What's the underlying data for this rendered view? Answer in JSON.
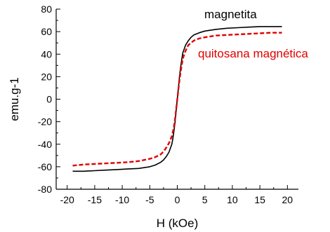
{
  "chart_data": {
    "type": "line",
    "title": "",
    "xlabel": "H (kOe)",
    "ylabel": "emu.g-1",
    "xlim": [
      -22,
      22
    ],
    "ylim": [
      -80,
      80
    ],
    "xticks": [
      -20,
      -15,
      -10,
      -5,
      0,
      5,
      10,
      15,
      20
    ],
    "yticks": [
      -80,
      -60,
      -40,
      -20,
      0,
      20,
      40,
      60,
      80
    ],
    "x_tick_labels": [
      "-20",
      "-15",
      "-10",
      "-5",
      "0",
      "5",
      "10",
      "15",
      "20"
    ],
    "y_tick_labels": [
      "-80",
      "-60",
      "-40",
      "-20",
      "0",
      "20",
      "40",
      "60",
      "80"
    ],
    "grid": false,
    "series": [
      {
        "name": "magnetita",
        "color": "#000000",
        "line_style": "solid",
        "x": [
          -19,
          -17,
          -15,
          -13,
          -11,
          -9,
          -7,
          -5,
          -4,
          -3,
          -2.5,
          -2,
          -1.5,
          -1,
          -0.8,
          -0.6,
          -0.4,
          -0.2,
          0,
          0.2,
          0.4,
          0.6,
          0.8,
          1,
          1.5,
          2,
          2.5,
          3,
          4,
          5,
          7,
          9,
          11,
          13,
          15,
          17,
          19
        ],
        "y": [
          -64,
          -64,
          -63.5,
          -63,
          -62.5,
          -62,
          -61.5,
          -60,
          -58.5,
          -56,
          -54,
          -51,
          -47,
          -40,
          -35,
          -28,
          -20,
          -10,
          0,
          10,
          20,
          28,
          35,
          41,
          48,
          52,
          55,
          57,
          59,
          60.5,
          62,
          63,
          63.5,
          64,
          64.5,
          64.5,
          64.5
        ]
      },
      {
        "name": "quitosana magnética",
        "color": "#e00000",
        "line_style": "dashed",
        "x": [
          -19,
          -17,
          -15,
          -13,
          -11,
          -9,
          -7,
          -5,
          -4,
          -3,
          -2.5,
          -2,
          -1.5,
          -1,
          -0.8,
          -0.6,
          -0.4,
          -0.2,
          0,
          0.2,
          0.4,
          0.6,
          0.8,
          1,
          1.5,
          2,
          2.5,
          3,
          4,
          5,
          7,
          9,
          11,
          13,
          15,
          17,
          19
        ],
        "y": [
          -59,
          -58,
          -57.5,
          -57,
          -56.5,
          -56,
          -55,
          -53,
          -51.5,
          -49,
          -46.5,
          -43,
          -39,
          -33,
          -29,
          -24,
          -17,
          -9,
          0,
          9,
          17,
          24,
          30,
          36,
          43,
          48,
          50,
          52,
          54,
          55,
          56.5,
          57,
          57.5,
          58,
          58.5,
          59,
          59
        ]
      }
    ]
  }
}
